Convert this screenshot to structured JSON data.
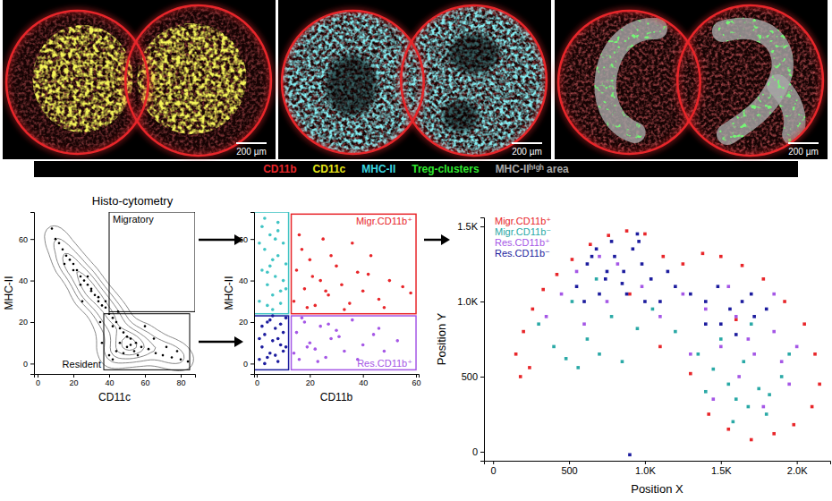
{
  "images": {
    "panels": [
      {
        "scale_bar": "200 µm"
      },
      {
        "scale_bar": "200 µm"
      },
      {
        "scale_bar": "200 µm"
      }
    ],
    "legend": [
      {
        "label": "CD11b",
        "color": "#e8262a"
      },
      {
        "label": "CD11c",
        "color": "#e6e619"
      },
      {
        "label": "MHC-II",
        "color": "#3ad6e0"
      },
      {
        "label": "Treg-clusters",
        "color": "#2ee62e"
      },
      {
        "label": "MHC-IIʰⁱᵍʰ area",
        "color": "#a8a8a8"
      }
    ]
  },
  "chart_data": [
    {
      "type": "contour-scatter",
      "title": "Histo-cytometry",
      "x_label": "CD11c",
      "y_label": "MHC-II",
      "xlim": [
        -2,
        88
      ],
      "ylim": [
        -5,
        73
      ],
      "xticks": [
        0,
        20,
        40,
        60,
        80
      ],
      "yticks": [
        0,
        20,
        40,
        60
      ],
      "marker": "dot",
      "gates": [
        {
          "label": "Migratory",
          "color": "#000000",
          "x": [
            40,
            88
          ],
          "y": [
            25,
            73
          ]
        },
        {
          "label": "Resident",
          "color": "#000000",
          "x": [
            37,
            85
          ],
          "y": [
            -3,
            24
          ]
        }
      ],
      "series": [
        {
          "color": "#000000",
          "x": [
            8,
            10,
            12,
            14,
            16,
            18,
            20,
            22,
            24,
            26,
            28,
            30,
            32,
            34,
            36,
            38,
            40,
            42,
            44,
            46,
            48,
            50,
            52,
            55,
            58,
            62,
            66,
            70,
            75,
            80,
            84,
            20,
            24,
            28,
            30,
            34,
            38,
            42,
            46,
            50,
            54,
            40,
            44,
            48,
            52,
            56,
            36,
            42,
            15,
            25,
            35,
            45,
            60,
            65,
            72,
            78
          ],
          "values": [
            65,
            60,
            58,
            55,
            52,
            50,
            48,
            45,
            42,
            40,
            38,
            36,
            33,
            30,
            28,
            27,
            24,
            22,
            20,
            17,
            15,
            13,
            12,
            10,
            8,
            7,
            5,
            4,
            3,
            2,
            1,
            45,
            38,
            42,
            35,
            32,
            30,
            18,
            10,
            8,
            6,
            4,
            6,
            5,
            9,
            4,
            10,
            2,
            48,
            30,
            20,
            25,
            18,
            12,
            8,
            6
          ]
        }
      ]
    },
    {
      "type": "scatter",
      "x_label": "CD11b",
      "y_label": "MHC-II",
      "xlim": [
        -1,
        61
      ],
      "ylim": [
        -5,
        73
      ],
      "xticks": [
        0,
        20,
        40,
        60
      ],
      "yticks": [
        0,
        20,
        40,
        60
      ],
      "marker": "dot",
      "gates": [
        {
          "label": "Migr.CD11b⁺",
          "color": "#e8262a",
          "x": [
            13,
            60
          ],
          "y": [
            24,
            72
          ]
        },
        {
          "label": "Res.CD11b⁺",
          "color": "#a557e6",
          "x": [
            13,
            60
          ],
          "y": [
            -3,
            23
          ]
        },
        {
          "color": "#40c4c4",
          "x": [
            -1,
            12
          ],
          "y": [
            24,
            73
          ]
        },
        {
          "color": "#1c1c9e",
          "x": [
            -1,
            12
          ],
          "y": [
            -3,
            23
          ]
        }
      ],
      "series": [
        {
          "color": "#40c4c4",
          "x": [
            1,
            2,
            3,
            4,
            5,
            6,
            7,
            8,
            9,
            10,
            11,
            2,
            4,
            6,
            8,
            10,
            3,
            5,
            7,
            9,
            1,
            6,
            11,
            4,
            8
          ],
          "values": [
            30,
            45,
            55,
            38,
            62,
            50,
            42,
            68,
            35,
            58,
            48,
            66,
            28,
            33,
            52,
            40,
            70,
            47,
            60,
            29,
            58,
            26,
            36,
            44,
            64
          ]
        },
        {
          "color": "#e8262a",
          "x": [
            14,
            15,
            17,
            18,
            20,
            22,
            24,
            25,
            27,
            30,
            32,
            35,
            38,
            40,
            43,
            46,
            50,
            55,
            16,
            19,
            21,
            26,
            28,
            33,
            36,
            42,
            48,
            58
          ],
          "values": [
            30,
            45,
            55,
            36,
            50,
            28,
            40,
            60,
            33,
            47,
            38,
            29,
            44,
            35,
            52,
            31,
            40,
            37,
            62,
            27,
            42,
            35,
            52,
            26,
            58,
            43,
            27,
            34
          ]
        },
        {
          "color": "#1c1c9e",
          "x": [
            1,
            2,
            3,
            4,
            5,
            6,
            7,
            8,
            9,
            10,
            11,
            2,
            4,
            6,
            8,
            10,
            3,
            5,
            7,
            9,
            1,
            11
          ],
          "values": [
            2,
            8,
            14,
            20,
            5,
            11,
            17,
            1,
            9,
            15,
            22,
            18,
            3,
            23,
            12,
            6,
            0,
            21,
            4,
            19,
            12,
            8
          ]
        },
        {
          "color": "#a557e6",
          "x": [
            14,
            15,
            16,
            18,
            20,
            22,
            24,
            26,
            28,
            30,
            33,
            36,
            40,
            44,
            48,
            53,
            17,
            19,
            23,
            27,
            31,
            38,
            46
          ],
          "values": [
            5,
            15,
            2,
            20,
            10,
            7,
            18,
            3,
            12,
            16,
            6,
            21,
            9,
            14,
            6,
            11,
            22,
            8,
            1,
            19,
            13,
            2,
            17
          ]
        }
      ]
    },
    {
      "type": "scatter",
      "x_label": "Position X",
      "y_label": "Position Y",
      "xlim": [
        -60,
        2220
      ],
      "ylim": [
        -60,
        1560
      ],
      "xticks": [
        0,
        500,
        {
          "value": 1000,
          "label": "1.0K"
        },
        {
          "value": 1500,
          "label": "1.5K"
        },
        {
          "value": 2000,
          "label": "2.0K"
        }
      ],
      "yticks": [
        0,
        500,
        {
          "value": 1000,
          "label": "1.0K"
        },
        {
          "value": 1500,
          "label": "1.5K"
        }
      ],
      "marker": "square",
      "legend": "top-left",
      "series": [
        {
          "name": "Migr.CD11b⁺",
          "color": "#e8262a",
          "x": [
            150,
            200,
            260,
            330,
            420,
            520,
            640,
            760,
            880,
            1000,
            1120,
            1250,
            1380,
            1500,
            1640,
            1780,
            1920,
            2050,
            2120,
            2150,
            2100,
            1980,
            1850,
            1700,
            1550,
            1420,
            1300,
            180,
            240,
            900,
            1100,
            1600
          ],
          "values": [
            650,
            800,
            950,
            1080,
            1180,
            1280,
            1380,
            1440,
            1470,
            1450,
            1300,
            1250,
            1320,
            1300,
            1240,
            1150,
            1000,
            850,
            650,
            450,
            300,
            180,
            120,
            80,
            150,
            250,
            520,
            500,
            560,
            1050,
            700,
            880
          ]
        },
        {
          "name": "Migr.CD11b⁻",
          "color": "#2aa9a6",
          "x": [
            400,
            480,
            560,
            620,
            700,
            780,
            850,
            950,
            300,
            520,
            680,
            1050,
            1200,
            1350,
            1450,
            1550,
            1600,
            1680,
            1750,
            1820,
            1900,
            1950,
            1500,
            1650,
            1800,
            1700,
            1400,
            1580
          ],
          "values": [
            700,
            620,
            560,
            750,
            650,
            900,
            600,
            820,
            850,
            1000,
            1150,
            950,
            800,
            650,
            550,
            450,
            350,
            300,
            420,
            380,
            500,
            650,
            750,
            600,
            250,
            850,
            400,
            200
          ]
        },
        {
          "name": "Res.CD11b⁺",
          "color": "#a557e6",
          "x": [
            350,
            450,
            600,
            750,
            820,
            980,
            1100,
            1250,
            1400,
            1500,
            1620,
            1720,
            1850,
            1950,
            2000,
            1780,
            1600,
            1450,
            1680,
            1900,
            700,
            550,
            1300,
            1550,
            1850
          ],
          "values": [
            900,
            1050,
            850,
            1000,
            1250,
            1100,
            900,
            1050,
            950,
            700,
            500,
            650,
            800,
            450,
            700,
            300,
            900,
            350,
            750,
            600,
            1300,
            1200,
            650,
            1100,
            1050
          ]
        },
        {
          "name": "Res.CD11b⁻",
          "color": "#1c1c9e",
          "x": [
            550,
            620,
            680,
            740,
            800,
            860,
            920,
            980,
            1040,
            600,
            700,
            780,
            880,
            960,
            650,
            750,
            850,
            1100,
            1200,
            1300,
            1400,
            1480,
            1560,
            1640,
            1720,
            1500,
            1600,
            1700,
            1400,
            1800,
            900,
            1000,
            950,
            1150
          ],
          "values": [
            1100,
            1250,
            1350,
            1150,
            1300,
            1200,
            1350,
            1250,
            1150,
            1000,
            1050,
            1400,
            1050,
            1400,
            1300,
            1200,
            1120,
            1000,
            1100,
            1050,
            1000,
            1100,
            950,
            1000,
            900,
            850,
            780,
            1050,
            850,
            950,
            -20,
            1000,
            1450,
            1200
          ]
        }
      ]
    }
  ]
}
